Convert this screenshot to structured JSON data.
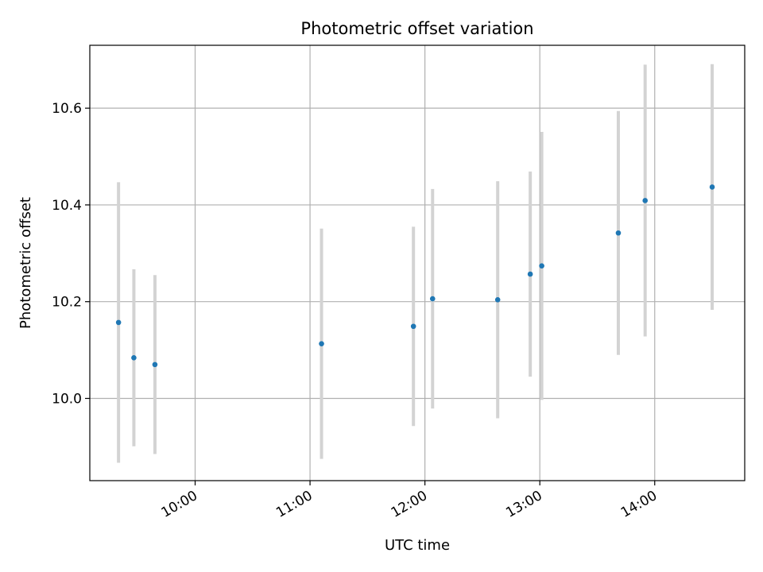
{
  "chart_data": {
    "type": "scatter",
    "title": "Photometric offset variation",
    "xlabel": "UTC time",
    "ylabel": "Photometric offset",
    "x_axis_type": "time",
    "x_ticks": [
      "10:00",
      "11:00",
      "12:00",
      "13:00",
      "14:00"
    ],
    "y_ticks": [
      "10.0",
      "10.2",
      "10.4",
      "10.6"
    ],
    "xlim": [
      "09:05",
      "14:47"
    ],
    "ylim": [
      9.83,
      10.73
    ],
    "grid": true,
    "legend": "none",
    "marker_color": "#1f77b4",
    "errorbar_color": "#d3d3d3",
    "points": [
      {
        "time": "09:20",
        "y": 10.157,
        "err": 0.29
      },
      {
        "time": "09:28",
        "y": 10.084,
        "err": 0.183
      },
      {
        "time": "09:39",
        "y": 10.07,
        "err": 0.185
      },
      {
        "time": "11:06",
        "y": 10.113,
        "err": 0.238
      },
      {
        "time": "11:54",
        "y": 10.149,
        "err": 0.206
      },
      {
        "time": "12:04",
        "y": 10.206,
        "err": 0.227
      },
      {
        "time": "12:38",
        "y": 10.204,
        "err": 0.245
      },
      {
        "time": "12:55",
        "y": 10.257,
        "err": 0.212
      },
      {
        "time": "13:01",
        "y": 10.274,
        "err": 0.277
      },
      {
        "time": "13:41",
        "y": 10.342,
        "err": 0.252
      },
      {
        "time": "13:55",
        "y": 10.409,
        "err": 0.281
      },
      {
        "time": "14:30",
        "y": 10.437,
        "err": 0.254
      }
    ]
  }
}
